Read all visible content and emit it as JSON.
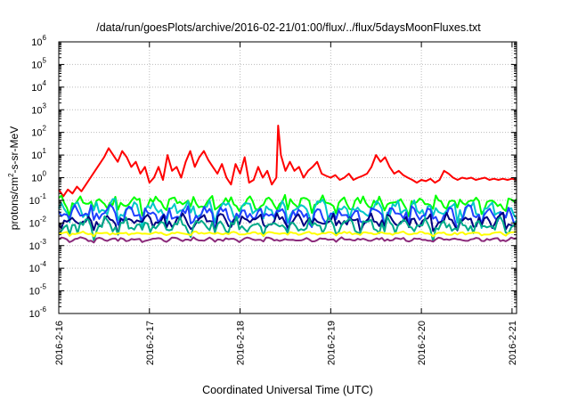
{
  "chart_data": {
    "type": "line",
    "title": "/data/run/goesPlots/archive/2016-02-21/01:00/flux/../flux/5daysMoonFluxes.txt",
    "xlabel": "Coordinated Universal Time (UTC)",
    "ylabel_parts": [
      "protons/cm",
      "2",
      "-s-sr-MeV"
    ],
    "y_scale": "log",
    "ylim_exp": [
      -6,
      6
    ],
    "y_ticks": [
      {
        "base": "10",
        "exp": "-6"
      },
      {
        "base": "10",
        "exp": "-5"
      },
      {
        "base": "10",
        "exp": "-4"
      },
      {
        "base": "10",
        "exp": "-3"
      },
      {
        "base": "10",
        "exp": "-2"
      },
      {
        "base": "10",
        "exp": "-1"
      },
      {
        "base": "10",
        "exp": "0"
      },
      {
        "base": "10",
        "exp": "1"
      },
      {
        "base": "10",
        "exp": "2"
      },
      {
        "base": "10",
        "exp": "3"
      },
      {
        "base": "10",
        "exp": "4"
      },
      {
        "base": "10",
        "exp": "5"
      },
      {
        "base": "10",
        "exp": "6"
      }
    ],
    "x_ticks": [
      "2016-2-16",
      "2016-2-17",
      "2016-2-18",
      "2016-2-19",
      "2016-2-20",
      "2016-2-21"
    ],
    "xlim_days": [
      0,
      5.05
    ],
    "grid": true,
    "series": [
      {
        "color": "#ff0000",
        "style": "red-storm",
        "x": [
          0,
          0.05,
          0.1,
          0.15,
          0.2,
          0.25,
          0.3,
          0.35,
          0.4,
          0.45,
          0.5,
          0.55,
          0.6,
          0.65,
          0.7,
          0.75,
          0.8,
          0.85,
          0.9,
          0.95,
          1.0,
          1.05,
          1.1,
          1.15,
          1.2,
          1.25,
          1.3,
          1.35,
          1.4,
          1.45,
          1.5,
          1.55,
          1.6,
          1.65,
          1.7,
          1.75,
          1.8,
          1.85,
          1.9,
          1.95,
          2.0,
          2.05,
          2.1,
          2.15,
          2.2,
          2.25,
          2.3,
          2.35,
          2.4,
          2.42,
          2.45,
          2.5,
          2.55,
          2.6,
          2.65,
          2.7,
          2.75,
          2.8,
          2.85,
          2.9,
          2.95,
          3.0,
          3.05,
          3.1,
          3.15,
          3.2,
          3.25,
          3.3,
          3.35,
          3.4,
          3.45,
          3.5,
          3.55,
          3.6,
          3.65,
          3.7,
          3.75,
          3.8,
          3.85,
          3.9,
          3.95,
          4.0,
          4.05,
          4.1,
          4.15,
          4.2,
          4.25,
          4.3,
          4.35,
          4.4,
          4.45,
          4.5,
          4.55,
          4.6,
          4.65,
          4.7,
          4.75,
          4.8,
          4.85,
          4.9,
          4.95,
          5.0,
          5.05
        ],
        "y": [
          0.3,
          0.15,
          0.3,
          0.2,
          0.4,
          0.25,
          0.5,
          1.0,
          2.0,
          4.0,
          8.0,
          20.0,
          10.0,
          5.0,
          15.0,
          8.0,
          3.0,
          5.0,
          1.5,
          3.0,
          0.6,
          1.0,
          3.0,
          0.8,
          10.0,
          2.0,
          3.0,
          1.0,
          5.0,
          15.0,
          3.0,
          8.0,
          15.0,
          6.0,
          3.0,
          1.5,
          4.0,
          1.0,
          0.5,
          4.0,
          1.5,
          8.0,
          0.6,
          0.8,
          3.0,
          1.0,
          2.0,
          0.5,
          1.0,
          200.0,
          10.0,
          2.0,
          5.0,
          2.0,
          3.0,
          1.0,
          2.0,
          3.0,
          5.0,
          1.5,
          1.2,
          1.0,
          1.3,
          0.8,
          1.0,
          1.5,
          0.8,
          1.0,
          1.2,
          1.5,
          3.0,
          10.0,
          5.0,
          8.0,
          3.0,
          1.5,
          2.0,
          1.3,
          1.0,
          0.8,
          0.6,
          0.8,
          0.7,
          0.9,
          0.6,
          0.8,
          2.0,
          1.5,
          1.0,
          0.8,
          1.0,
          0.9,
          1.0,
          0.8,
          0.9,
          1.0,
          0.8,
          0.9,
          0.8,
          0.9,
          0.8,
          0.9,
          0.8
        ]
      },
      {
        "color": "#00ff00",
        "base": 0.08,
        "amp": 0.35,
        "seed": 11
      },
      {
        "color": "#00c8c8",
        "base": 0.04,
        "amp": 0.5,
        "seed": 23
      },
      {
        "color": "#2040ff",
        "base": 0.025,
        "amp": 0.45,
        "seed": 37
      },
      {
        "color": "#000080",
        "base": 0.013,
        "amp": 0.35,
        "seed": 53
      },
      {
        "color": "#00aa88",
        "base": 0.008,
        "amp": 0.4,
        "seed": 71
      },
      {
        "color": "#ffff00",
        "base": 0.0035,
        "amp": 0.08,
        "seed": 89
      },
      {
        "color": "#8b2a7a",
        "base": 0.0019,
        "amp": 0.1,
        "seed": 97
      }
    ]
  }
}
